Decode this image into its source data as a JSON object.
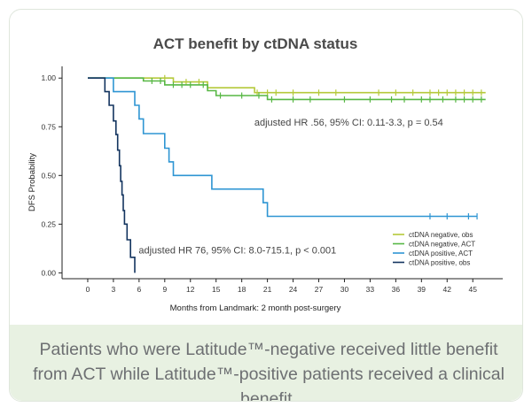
{
  "chart_data": {
    "type": "line",
    "title": "ACT benefit by ctDNA status",
    "xlabel": "Months from Landmark: 2 month post-surgery",
    "ylabel": "DFS Probability",
    "xlim": [
      -3,
      48.5
    ],
    "ylim": [
      -0.03,
      1.06
    ],
    "x_ticks": [
      0,
      3,
      6,
      9,
      12,
      15,
      18,
      21,
      24,
      27,
      30,
      33,
      36,
      39,
      42,
      45
    ],
    "y_ticks": [
      0.0,
      0.25,
      0.5,
      0.75,
      1.0
    ],
    "y_tick_labels": [
      "0.00",
      "0.25",
      "0.50",
      "0.75",
      "1.00"
    ],
    "legend_position": "bottom-right",
    "series": [
      {
        "name": "ctDNA negative, obs",
        "color": "#b5c93a",
        "points": [
          [
            0,
            1.0
          ],
          [
            10,
            1.0
          ],
          [
            10,
            0.98
          ],
          [
            14,
            0.98
          ],
          [
            14,
            0.95
          ],
          [
            19.5,
            0.95
          ],
          [
            19.5,
            0.925
          ],
          [
            46.5,
            0.925
          ]
        ],
        "censor": [
          9,
          11.5,
          13,
          19.8,
          21,
          22,
          24,
          27,
          29,
          34,
          36,
          38,
          40,
          41,
          42,
          43,
          44,
          45,
          46
        ]
      },
      {
        "name": "ctDNA negative, ACT",
        "color": "#57b744",
        "points": [
          [
            0,
            1.0
          ],
          [
            6.5,
            1.0
          ],
          [
            6.5,
            0.985
          ],
          [
            9,
            0.985
          ],
          [
            9,
            0.965
          ],
          [
            14,
            0.965
          ],
          [
            14,
            0.935
          ],
          [
            15,
            0.935
          ],
          [
            15,
            0.91
          ],
          [
            21,
            0.91
          ],
          [
            21,
            0.89
          ],
          [
            46.5,
            0.89
          ]
        ],
        "censor": [
          7.5,
          8.5,
          10,
          11,
          12,
          13.5,
          15.5,
          18,
          20,
          21.5,
          24,
          26,
          30,
          33,
          35.5,
          37,
          39,
          40,
          41.5,
          43,
          44,
          45,
          46
        ]
      },
      {
        "name": "ctDNA positive, ACT",
        "color": "#2e95d3",
        "points": [
          [
            0,
            1.0
          ],
          [
            3,
            1.0
          ],
          [
            3,
            0.93
          ],
          [
            5.5,
            0.93
          ],
          [
            5.5,
            0.86
          ],
          [
            6,
            0.86
          ],
          [
            6,
            0.79
          ],
          [
            6.5,
            0.79
          ],
          [
            6.5,
            0.715
          ],
          [
            9,
            0.715
          ],
          [
            9,
            0.64
          ],
          [
            9.5,
            0.64
          ],
          [
            9.5,
            0.57
          ],
          [
            10,
            0.57
          ],
          [
            10,
            0.5
          ],
          [
            14.5,
            0.5
          ],
          [
            14.5,
            0.43
          ],
          [
            20.5,
            0.43
          ],
          [
            20.5,
            0.36
          ],
          [
            21,
            0.36
          ],
          [
            21,
            0.29
          ],
          [
            45.5,
            0.29
          ]
        ],
        "censor": [
          40,
          42,
          44.5,
          45.5
        ]
      },
      {
        "name": "ctDNA positive, obs",
        "color": "#13345f",
        "points": [
          [
            0,
            1.0
          ],
          [
            2,
            1.0
          ],
          [
            2,
            0.93
          ],
          [
            2.5,
            0.93
          ],
          [
            2.5,
            0.86
          ],
          [
            3,
            0.86
          ],
          [
            3,
            0.78
          ],
          [
            3.3,
            0.78
          ],
          [
            3.3,
            0.71
          ],
          [
            3.5,
            0.71
          ],
          [
            3.5,
            0.63
          ],
          [
            3.7,
            0.63
          ],
          [
            3.7,
            0.55
          ],
          [
            3.85,
            0.55
          ],
          [
            3.85,
            0.47
          ],
          [
            4,
            0.47
          ],
          [
            4,
            0.4
          ],
          [
            4.15,
            0.4
          ],
          [
            4.15,
            0.32
          ],
          [
            4.3,
            0.32
          ],
          [
            4.3,
            0.25
          ],
          [
            4.6,
            0.25
          ],
          [
            4.6,
            0.17
          ],
          [
            5,
            0.17
          ],
          [
            5,
            0.08
          ],
          [
            5.5,
            0.08
          ],
          [
            5.5,
            0.0
          ]
        ],
        "censor": []
      }
    ],
    "annotations": [
      {
        "text": "adjusted HR .56, 95% CI: 0.11-3.3, p = 0.54",
        "x": 30.5,
        "y": 0.755
      },
      {
        "text": "adjusted HR 76, 95% CI: 8.0-715.1, p < 0.001",
        "x": 17.5,
        "y": 0.1
      }
    ]
  },
  "caption": {
    "text": "Patients who were Latitude™-negative received little benefit from ACT while Latitude™-positive patients received a clinical benefit."
  }
}
